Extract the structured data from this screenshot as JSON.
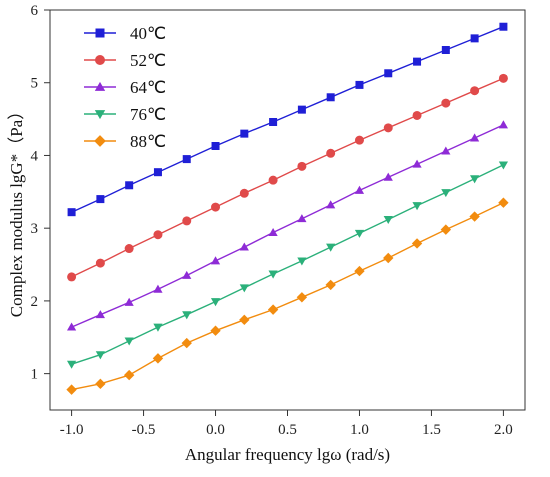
{
  "chart_data": {
    "type": "line",
    "xlabel": "Angular frequency lgω (rad/s)",
    "ylabel": "Complex modulus lgG*（Pa）",
    "xlim": [
      -1.15,
      2.15
    ],
    "ylim": [
      0.5,
      6.0
    ],
    "xticks": [
      -1.0,
      -0.5,
      0.0,
      0.5,
      1.0,
      1.5,
      2.0
    ],
    "xtick_labels": [
      "-1.0",
      "-0.5",
      "0.0",
      "0.5",
      "1.0",
      "1.5",
      "2.0"
    ],
    "yticks": [
      1,
      2,
      3,
      4,
      5,
      6
    ],
    "ytick_labels": [
      "1",
      "2",
      "3",
      "4",
      "5",
      "6"
    ],
    "grid": false,
    "legend_position": "top-left",
    "x": [
      -1.0,
      -0.8,
      -0.6,
      -0.4,
      -0.2,
      0.0,
      0.2,
      0.4,
      0.6,
      0.8,
      1.0,
      1.2,
      1.4,
      1.6,
      1.8,
      2.0
    ],
    "series": [
      {
        "name": "40℃",
        "color": "#1f1fd6",
        "marker": "square",
        "values": [
          3.22,
          3.4,
          3.59,
          3.77,
          3.95,
          4.13,
          4.3,
          4.46,
          4.63,
          4.8,
          4.97,
          5.13,
          5.29,
          5.45,
          5.61,
          5.77
        ]
      },
      {
        "name": "52℃",
        "color": "#e04a4a",
        "marker": "circle",
        "values": [
          2.33,
          2.52,
          2.72,
          2.91,
          3.1,
          3.29,
          3.48,
          3.66,
          3.85,
          4.03,
          4.21,
          4.38,
          4.55,
          4.72,
          4.89,
          5.06
        ]
      },
      {
        "name": "64℃",
        "color": "#8e2bd6",
        "marker": "triangle-up",
        "values": [
          1.64,
          1.81,
          1.98,
          2.16,
          2.35,
          2.55,
          2.74,
          2.94,
          3.13,
          3.32,
          3.52,
          3.7,
          3.88,
          4.06,
          4.24,
          4.42
        ]
      },
      {
        "name": "76℃",
        "color": "#2bb07a",
        "marker": "triangle-down",
        "values": [
          1.13,
          1.26,
          1.45,
          1.64,
          1.81,
          1.99,
          2.18,
          2.37,
          2.55,
          2.74,
          2.93,
          3.12,
          3.31,
          3.49,
          3.68,
          3.87
        ]
      },
      {
        "name": "88℃",
        "color": "#f28c0f",
        "marker": "diamond",
        "values": [
          0.78,
          0.86,
          0.98,
          1.21,
          1.42,
          1.59,
          1.74,
          1.88,
          2.05,
          2.22,
          2.41,
          2.59,
          2.79,
          2.98,
          3.16,
          3.35
        ]
      }
    ]
  }
}
